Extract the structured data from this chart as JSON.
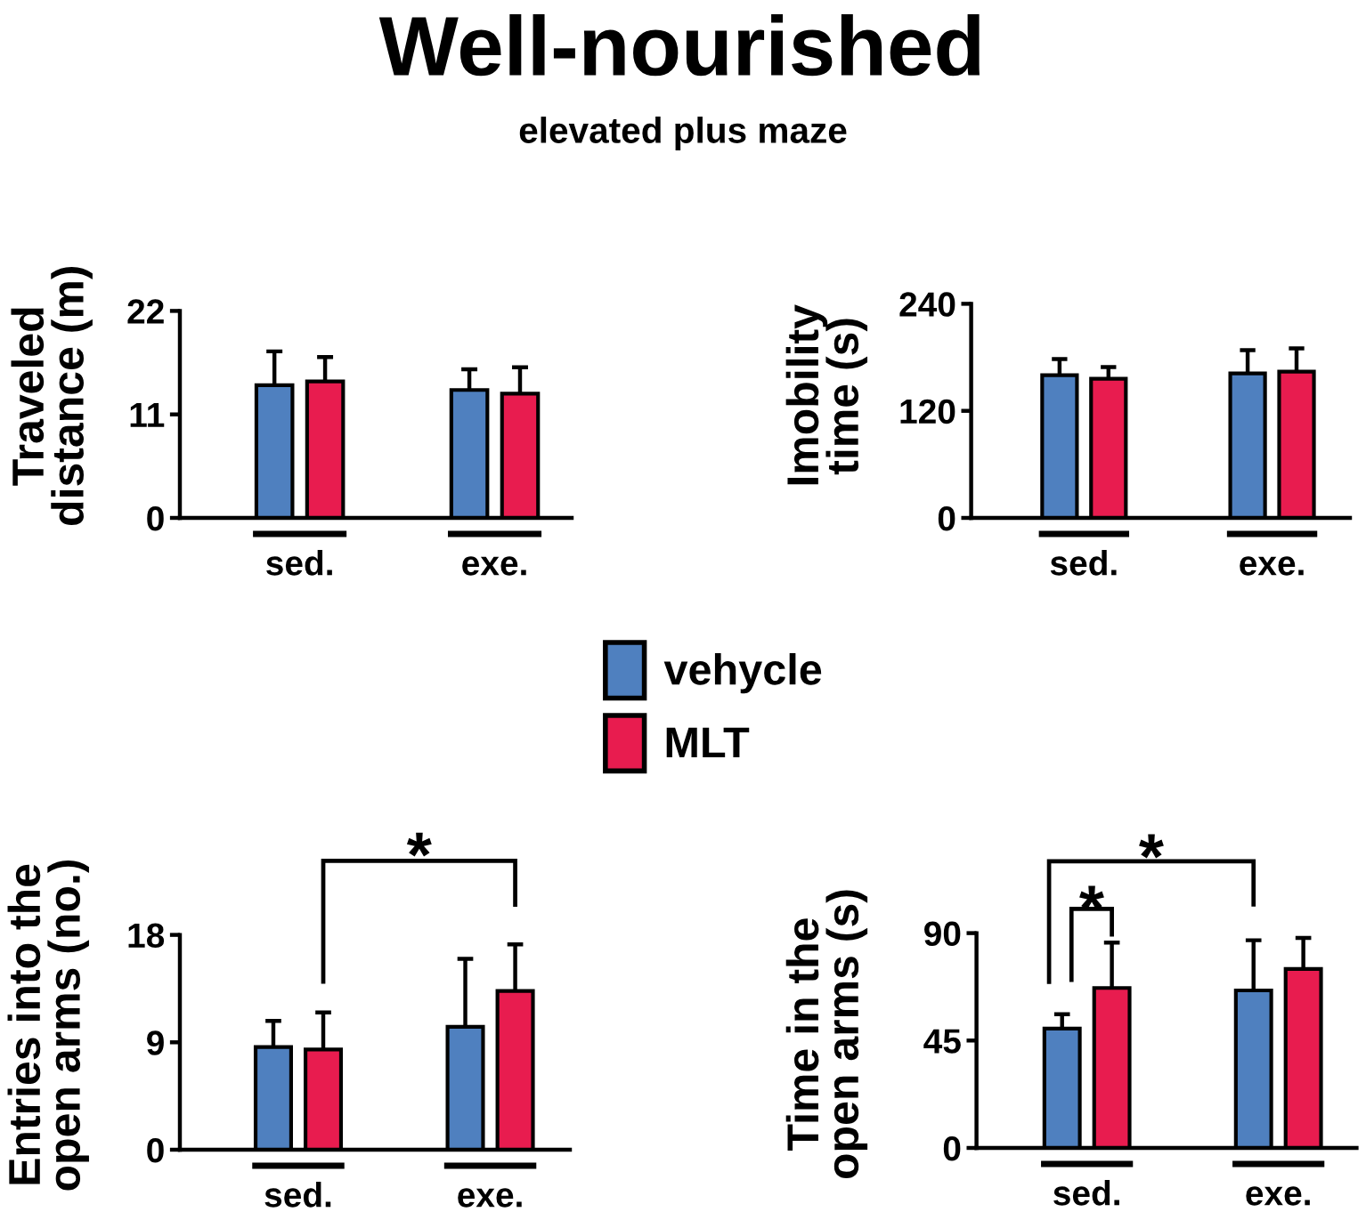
{
  "chart_data": [
    {
      "type": "bar",
      "title": "Well-nourished",
      "subtitle": "elevated plus maze",
      "ylabel": "Traveled\ndistance (m)",
      "categories": [
        "sed.",
        "exe."
      ],
      "series": [
        {
          "name": "vehycle",
          "color": "#4f80bf",
          "values": [
            14.1,
            13.6
          ],
          "errors": [
            [
              14.1,
              17.7
            ],
            [
              13.6,
              15.8
            ]
          ]
        },
        {
          "name": "MLT",
          "color": "#e81c4f",
          "values": [
            14.5,
            13.2
          ],
          "errors": [
            [
              14.5,
              17.1
            ],
            [
              13.2,
              16.0
            ]
          ]
        }
      ],
      "ylim": [
        0,
        22
      ],
      "yticks": [
        0,
        11,
        22
      ],
      "legend": "bottom right"
    },
    {
      "type": "bar",
      "ylabel": "Imobility\ntime (s)",
      "categories": [
        "sed.",
        "exe."
      ],
      "series": [
        {
          "color": "#4f80bf",
          "values": [
            160,
            162
          ],
          "errors": [
            [
              160,
              178
            ],
            [
              162,
              188
            ]
          ]
        },
        {
          "color": "#e81c4f",
          "values": [
            156,
            164
          ],
          "errors": [
            [
              156,
              169
            ],
            [
              164,
              190
            ]
          ]
        }
      ],
      "ylim": [
        0,
        240
      ],
      "yticks": [
        0,
        120,
        240
      ]
    },
    {
      "type": "bar",
      "ylabel": "Entries into the\nopen arms (no.)",
      "categories": [
        "sed.",
        "exe."
      ],
      "series": [
        {
          "color": "#4f80bf",
          "values": [
            8.6,
            10.3
          ],
          "errors": [
            [
              8.6,
              10.8
            ],
            [
              10.3,
              16.0
            ]
          ]
        },
        {
          "color": "#e81c4f",
          "values": [
            8.4,
            13.3
          ],
          "errors": [
            [
              8.4,
              11.5
            ],
            [
              13.3,
              17.2
            ]
          ]
        }
      ],
      "ylim": [
        0,
        18
      ],
      "yticks": [
        0,
        9,
        18
      ],
      "annotations": [
        "*"
      ]
    },
    {
      "type": "bar",
      "ylabel": "Time in the\nopen arms (s)",
      "categories": [
        "sed.",
        "exe."
      ],
      "series": [
        {
          "color": "#4f80bf",
          "values": [
            50,
            66
          ],
          "errors": [
            [
              50,
              56
            ],
            [
              66,
              87
            ]
          ]
        },
        {
          "color": "#e81c4f",
          "values": [
            67,
            75
          ],
          "errors": [
            [
              67,
              86
            ],
            [
              75,
              88
            ]
          ]
        }
      ],
      "ylim": [
        0,
        90
      ],
      "yticks": [
        0,
        45,
        90
      ],
      "annotations": [
        "*",
        "*"
      ]
    }
  ]
}
